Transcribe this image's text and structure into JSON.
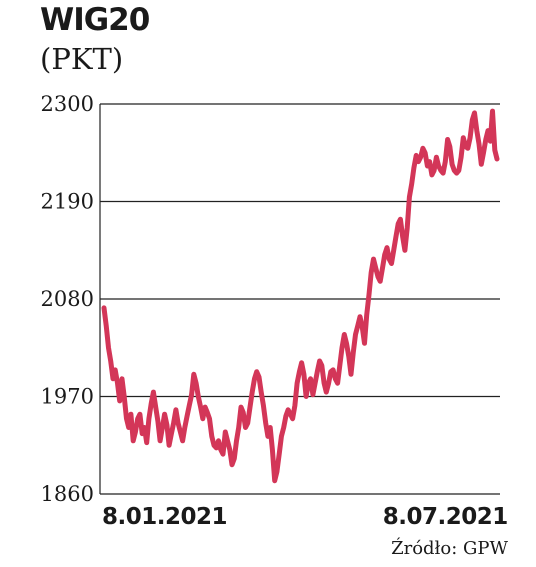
{
  "chart_data": {
    "type": "line",
    "title": "WIG20",
    "subtitle": "(PKT)",
    "source": "Źródło: GPW",
    "ylim": [
      1860,
      2300
    ],
    "yticks": [
      "2300",
      "2190",
      "2080",
      "1970",
      "1860"
    ],
    "xticks": [
      {
        "label": "8.01.2021",
        "index": 0
      },
      {
        "label": "8.07.2021",
        "index": 125
      }
    ],
    "grid": true,
    "line_color": "#d33658",
    "series": [
      {
        "values": [
          2070,
          2050,
          2025,
          2010,
          1990,
          2000,
          1985,
          1965,
          1990,
          1970,
          1945,
          1935,
          1950,
          1920,
          1930,
          1945,
          1950,
          1928,
          1935,
          1918,
          1945,
          1962,
          1975,
          1958,
          1942,
          1920,
          1935,
          1950,
          1938,
          1915,
          1928,
          1940,
          1955,
          1940,
          1930,
          1920,
          1935,
          1948,
          1960,
          1972,
          1995,
          1985,
          1970,
          1958,
          1945,
          1958,
          1952,
          1945,
          1925,
          1915,
          1912,
          1920,
          1910,
          1905,
          1930,
          1920,
          1910,
          1893,
          1900,
          1920,
          1935,
          1958,
          1952,
          1935,
          1940,
          1958,
          1975,
          1990,
          1998,
          1992,
          1975,
          1960,
          1940,
          1925,
          1935,
          1910,
          1875,
          1885,
          1905,
          1925,
          1935,
          1948,
          1955,
          1950,
          1945,
          1960,
          1985,
          1998,
          2008,
          1995,
          1970,
          1985,
          1990,
          1972,
          1985,
          1998,
          2010,
          2005,
          1985,
          1975,
          1985,
          1998,
          2000,
          1990,
          1985,
          2005,
          2025,
          2040,
          2030,
          2015,
          1995,
          2020,
          2040,
          2050,
          2060,
          2048,
          2030,
          2062,
          2085,
          2110,
          2125,
          2115,
          2105,
          2100,
          2115,
          2130,
          2138,
          2125,
          2120,
          2135,
          2150,
          2165,
          2170,
          2150,
          2135,
          2160,
          2195,
          2210,
          2228,
          2242,
          2235,
          2240,
          2250,
          2245,
          2230,
          2235,
          2220,
          2225,
          2240,
          2230,
          2225,
          2222,
          2235,
          2260,
          2252,
          2232,
          2225,
          2222,
          2225,
          2240,
          2262,
          2252,
          2250,
          2262,
          2282,
          2290,
          2270,
          2255,
          2232,
          2245,
          2260,
          2270,
          2258,
          2292,
          2248,
          2238
        ]
      }
    ]
  }
}
